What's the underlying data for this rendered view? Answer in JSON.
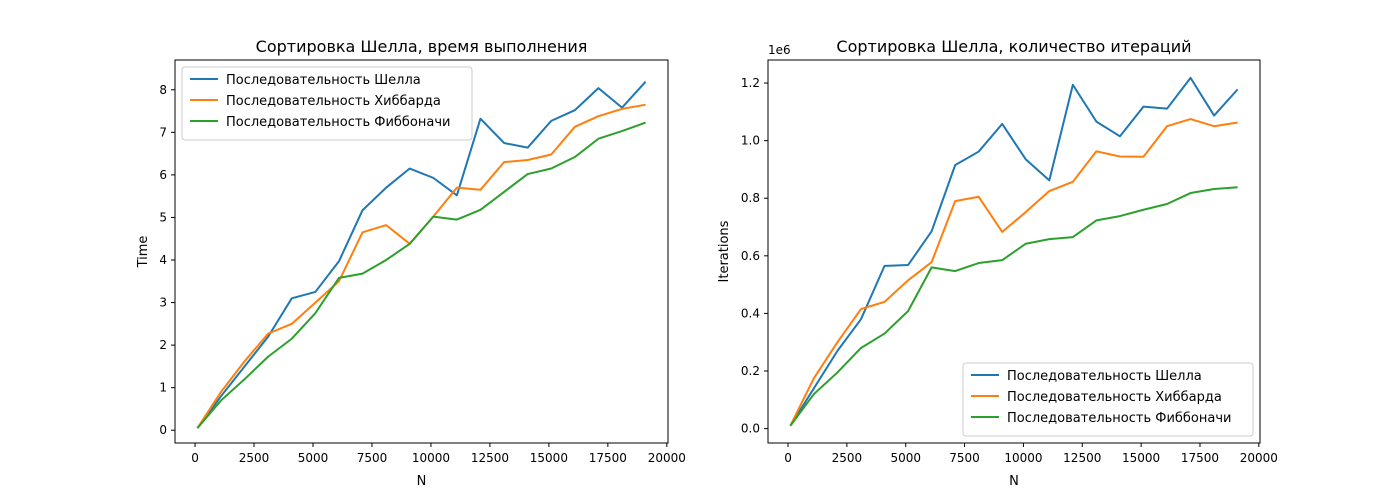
{
  "chart_data": [
    {
      "type": "line",
      "title": "Сортировка Шелла, время выполнения",
      "xlabel": "N",
      "ylabel": "Time",
      "x": [
        100,
        1100,
        2100,
        3100,
        4100,
        5100,
        6100,
        7100,
        8100,
        9100,
        10100,
        11100,
        12100,
        13100,
        14100,
        15100,
        16100,
        17100,
        18100,
        19100
      ],
      "xlim": [
        -850,
        20050
      ],
      "ylim": [
        -0.3,
        8.7
      ],
      "xticks": [
        "0",
        "2500",
        "5000",
        "7500",
        "10000",
        "12500",
        "15000",
        "17500",
        "20000"
      ],
      "xtick_values": [
        0,
        2500,
        5000,
        7500,
        10000,
        12500,
        15000,
        17500,
        20000
      ],
      "yticks": [
        "0",
        "1",
        "2",
        "3",
        "4",
        "5",
        "6",
        "7",
        "8"
      ],
      "ytick_values": [
        0,
        1,
        2,
        3,
        4,
        5,
        6,
        7,
        8
      ],
      "legend_position": "top-left",
      "series": [
        {
          "name": "Последовательность Шелла",
          "color": "#1f77b4",
          "values": [
            0.05,
            0.8,
            1.5,
            2.2,
            3.1,
            3.25,
            3.97,
            5.17,
            5.7,
            6.15,
            5.93,
            5.52,
            7.32,
            6.75,
            6.64,
            7.27,
            7.52,
            8.04,
            7.58,
            8.19
          ]
        },
        {
          "name": "Последовательность Хиббарда",
          "color": "#ff7f0e",
          "values": [
            0.05,
            0.9,
            1.62,
            2.27,
            2.5,
            3.0,
            3.5,
            4.65,
            4.82,
            4.38,
            5.02,
            5.7,
            5.65,
            6.3,
            6.35,
            6.48,
            7.13,
            7.38,
            7.55,
            7.65
          ]
        },
        {
          "name": "Последовательность Фиббоначи",
          "color": "#2ca02c",
          "values": [
            0.05,
            0.7,
            1.2,
            1.73,
            2.15,
            2.75,
            3.58,
            3.68,
            4.0,
            4.38,
            5.02,
            4.95,
            5.18,
            5.6,
            6.02,
            6.15,
            6.42,
            6.85,
            7.03,
            7.23
          ]
        }
      ]
    },
    {
      "type": "line",
      "title": "Сортировка Шелла, количество итераций",
      "xlabel": "N",
      "ylabel": "Iterations",
      "offset_label": "1e6",
      "x": [
        100,
        1100,
        2100,
        3100,
        4100,
        5100,
        6100,
        7100,
        8100,
        9100,
        10100,
        11100,
        12100,
        13100,
        14100,
        15100,
        16100,
        17100,
        18100,
        19100
      ],
      "xlim": [
        -850,
        20050
      ],
      "ylim": [
        -0.05,
        1.28
      ],
      "xticks": [
        "0",
        "2500",
        "5000",
        "7500",
        "10000",
        "12500",
        "15000",
        "17500",
        "20000"
      ],
      "xtick_values": [
        0,
        2500,
        5000,
        7500,
        10000,
        12500,
        15000,
        17500,
        20000
      ],
      "yticks": [
        "0.0",
        "0.2",
        "0.4",
        "0.6",
        "0.8",
        "1.0",
        "1.2"
      ],
      "ytick_values": [
        0,
        0.2,
        0.4,
        0.6,
        0.8,
        1.0,
        1.2
      ],
      "legend_position": "bottom-right",
      "series": [
        {
          "name": "Последовательность Шелла",
          "color": "#1f77b4",
          "values": [
            0.01,
            0.14,
            0.27,
            0.38,
            0.565,
            0.568,
            0.685,
            0.915,
            0.962,
            1.058,
            0.935,
            0.862,
            1.194,
            1.066,
            1.015,
            1.118,
            1.111,
            1.218,
            1.087,
            1.178
          ]
        },
        {
          "name": "Последовательность Хиббарда",
          "color": "#ff7f0e",
          "values": [
            0.01,
            0.175,
            0.3,
            0.415,
            0.44,
            0.515,
            0.578,
            0.79,
            0.805,
            0.683,
            0.752,
            0.825,
            0.857,
            0.963,
            0.945,
            0.944,
            1.05,
            1.075,
            1.05,
            1.063
          ]
        },
        {
          "name": "Последовательность Фиббоначи",
          "color": "#2ca02c",
          "values": [
            0.01,
            0.12,
            0.195,
            0.28,
            0.33,
            0.408,
            0.56,
            0.547,
            0.575,
            0.585,
            0.642,
            0.658,
            0.665,
            0.723,
            0.738,
            0.76,
            0.78,
            0.818,
            0.832,
            0.838
          ]
        }
      ]
    }
  ]
}
